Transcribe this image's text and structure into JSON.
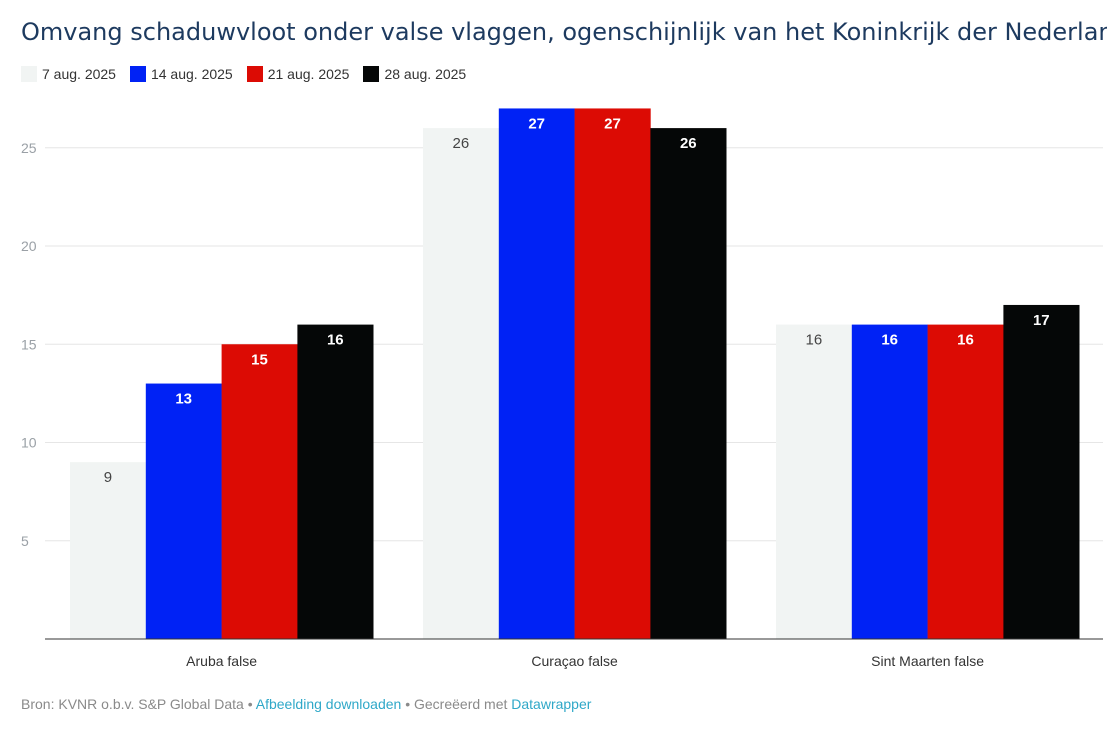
{
  "chart_data": {
    "type": "bar",
    "title": "Omvang schaduwvloot onder valse vlaggen, ogenschijnlijk van het Koninkrijk der Nederlanden",
    "categories": [
      "Aruba false",
      "Curaçao false",
      "Sint Maarten false"
    ],
    "series": [
      {
        "name": "7 aug. 2025",
        "color": "#f1f4f3",
        "label_color": "#444444",
        "values": [
          9,
          26,
          16
        ]
      },
      {
        "name": "14 aug. 2025",
        "color": "#0022f5",
        "label_color": "#ffffff",
        "values": [
          13,
          27,
          16
        ]
      },
      {
        "name": "21 aug. 2025",
        "color": "#dc0b04",
        "label_color": "#ffffff",
        "values": [
          15,
          27,
          16
        ]
      },
      {
        "name": "28 aug. 2025",
        "color": "#050707",
        "label_color": "#ffffff",
        "values": [
          16,
          26,
          17
        ]
      }
    ],
    "yticks": [
      5,
      10,
      15,
      20,
      25
    ],
    "ylim": [
      0,
      27
    ],
    "grid": true,
    "legend": "top-left"
  },
  "footer": {
    "source": "Bron: KVNR o.b.v. S&P Global Data",
    "sep1": " • ",
    "download": "Afbeelding downloaden",
    "sep2": " • Gecreëerd met ",
    "tool": "Datawrapper"
  }
}
